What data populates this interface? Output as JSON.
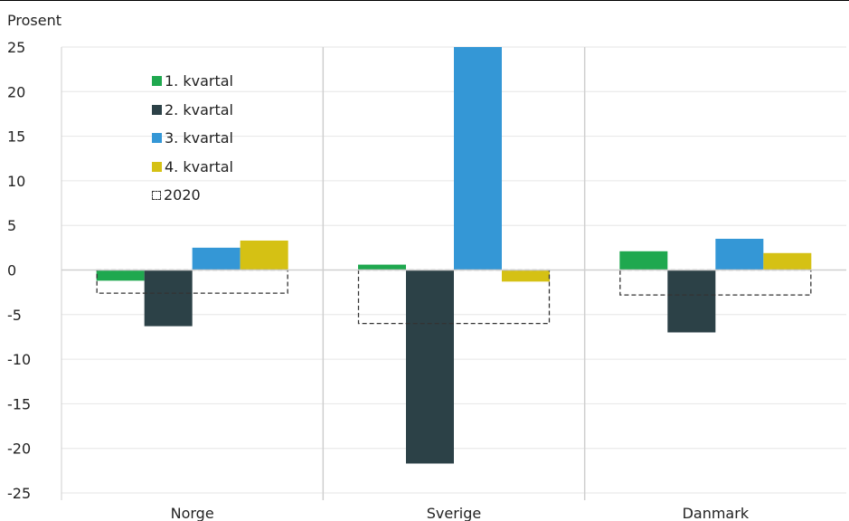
{
  "chart_data": {
    "type": "bar",
    "ylabel": "Prosent",
    "ylim": [
      -25,
      25
    ],
    "yticks": [
      "25",
      "20",
      "15",
      "10",
      "5",
      "0",
      "-5",
      "-10",
      "-15",
      "-20",
      "-25"
    ],
    "categories": [
      "Norge",
      "Sverige",
      "Danmark"
    ],
    "series": [
      {
        "name": "1. kvartal",
        "color": "#1fa84f",
        "values": [
          -1.2,
          0.6,
          2.1
        ]
      },
      {
        "name": "2. kvartal",
        "color": "#2c4147",
        "values": [
          -6.3,
          -21.7,
          -7.0
        ]
      },
      {
        "name": "3. kvartal",
        "color": "#3497d6",
        "values": [
          2.5,
          25.0,
          3.5
        ]
      },
      {
        "name": "4. kvartal",
        "color": "#d5c114",
        "values": [
          3.3,
          -1.3,
          1.9
        ]
      }
    ],
    "annual": {
      "name": "2020",
      "style": "dashed-outline",
      "values": [
        -2.6,
        -6.0,
        -2.8
      ]
    },
    "grid": true,
    "legend_position": "top-left"
  }
}
